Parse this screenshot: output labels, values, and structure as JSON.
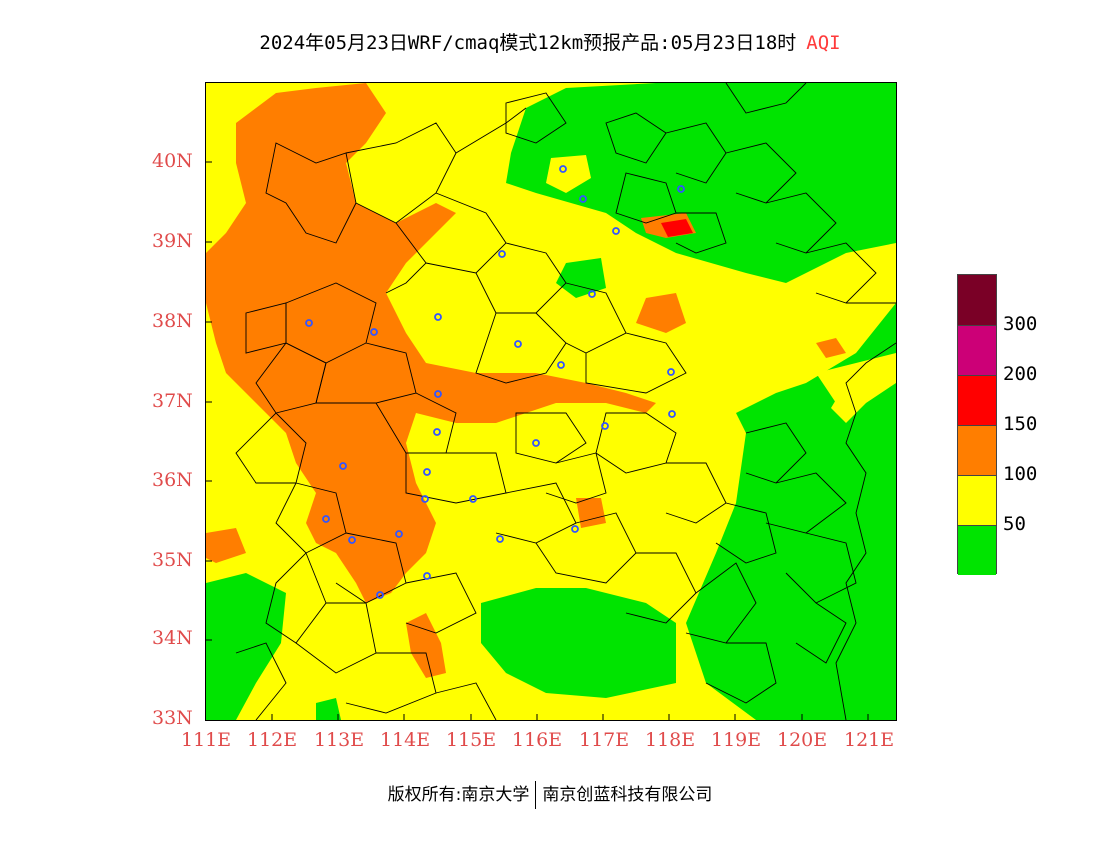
{
  "title": "2024年05月23日WRF/cmaq模式12km预报产品:05月23日18时",
  "title_tag": "AQI",
  "lat_labels": [
    "40N",
    "39N",
    "38N",
    "37N",
    "36N",
    "35N",
    "34N",
    "33N"
  ],
  "lon_labels": [
    "111E",
    "112E",
    "113E",
    "114E",
    "115E",
    "116E",
    "117E",
    "118E",
    "119E",
    "120E",
    "121E"
  ],
  "legend": {
    "colors": [
      "#7a0026",
      "#cc0077",
      "#ff0000",
      "#ff7e00",
      "#ffff00",
      "#00e400"
    ],
    "labels": [
      "300",
      "200",
      "150",
      "100",
      "50"
    ]
  },
  "footer": {
    "left": "版权所有:南京大学",
    "right": "南京创蓝科技有限公司"
  },
  "palette": {
    "good": "#00e400",
    "moderate": "#ffff00",
    "sensitive": "#ff7e00",
    "unhealthy": "#ff0000",
    "city_marker": "#3355ff"
  }
}
